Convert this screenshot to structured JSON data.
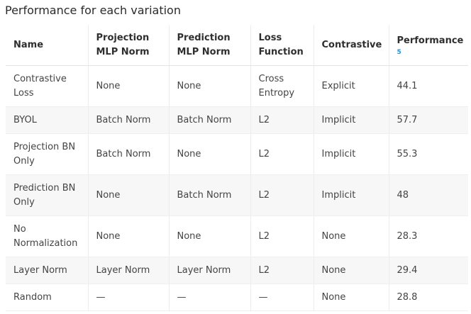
{
  "title": "Performance for each variation",
  "columns": [
    {
      "label": "Name"
    },
    {
      "label": "Projection MLP Norm"
    },
    {
      "label": "Prediction MLP Norm"
    },
    {
      "label": "Loss Function"
    },
    {
      "label": "Contrastive"
    },
    {
      "label": "Performance",
      "footnote": "5"
    }
  ],
  "rows": [
    [
      "Contrastive Loss",
      "None",
      "None",
      "Cross Entropy",
      "Explicit",
      "44.1"
    ],
    [
      "BYOL",
      "Batch Norm",
      "Batch Norm",
      "L2",
      "Implicit",
      "57.7"
    ],
    [
      "Projection BN Only",
      "Batch Norm",
      "None",
      "L2",
      "Implicit",
      "55.3"
    ],
    [
      "Prediction BN Only",
      "None",
      "Batch Norm",
      "L2",
      "Implicit",
      "48"
    ],
    [
      "No Normalization",
      "None",
      "None",
      "L2",
      "None",
      "28.3"
    ],
    [
      "Layer Norm",
      "Layer Norm",
      "Layer Norm",
      "L2",
      "None",
      "29.4"
    ],
    [
      "Random",
      "—",
      "—",
      "—",
      "None",
      "28.8"
    ]
  ]
}
